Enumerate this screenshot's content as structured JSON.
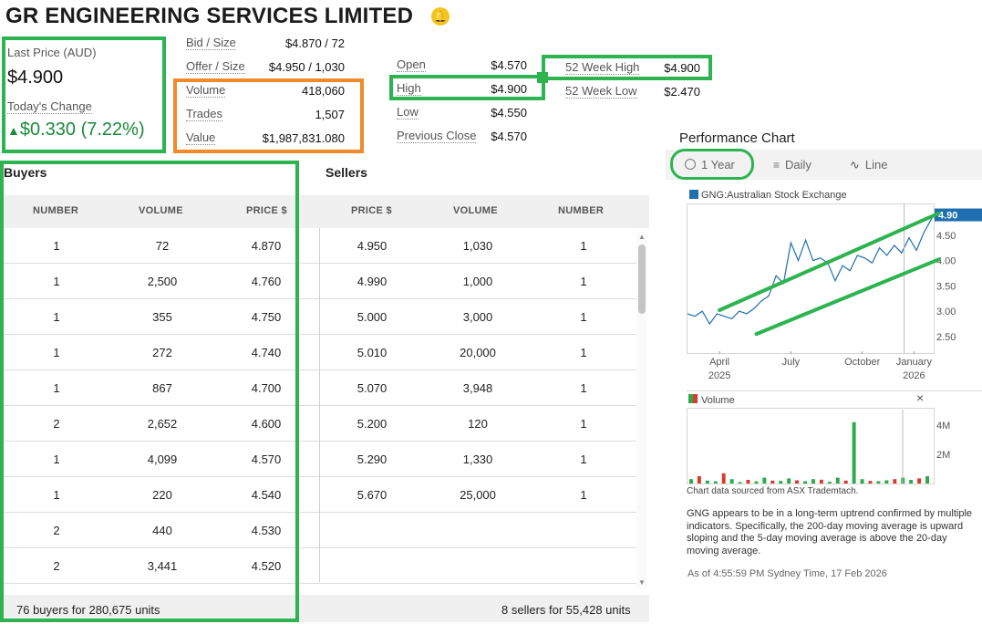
{
  "header": {
    "title": "GR ENGINEERING SERVICES LIMITED",
    "alert_icon": "bell-icon"
  },
  "quote": {
    "last_price_label": "Last Price (AUD)",
    "last_price": "$4.900",
    "change_label": "Today's Change",
    "change_arrow": "▲",
    "change_value": "$0.330",
    "change_pct": "(7.22%)",
    "up_color": "#1a8a3a"
  },
  "stats_col1": [
    {
      "label": "Bid / Size",
      "value": "$4.870 / 72"
    },
    {
      "label": "Offer / Size",
      "value": "$4.950 / 1,030"
    },
    {
      "label": "Volume",
      "value": "418,060"
    },
    {
      "label": "Trades",
      "value": "1,507"
    },
    {
      "label": "Value",
      "value": "$1,987,831.080"
    }
  ],
  "stats_col2": [
    {
      "label": "Open",
      "value": "$4.570"
    },
    {
      "label": "High",
      "value": "$4.900"
    },
    {
      "label": "Low",
      "value": "$4.550"
    },
    {
      "label": "Previous Close",
      "value": "$4.570"
    }
  ],
  "stats_col3": [
    {
      "label": "52 Week High",
      "value": "$4.900"
    },
    {
      "label": "52 Week Low",
      "value": "$2.470"
    }
  ],
  "book": {
    "buyers_title": "Buyers",
    "sellers_title": "Sellers",
    "headers": [
      "NUMBER",
      "VOLUME",
      "PRICE $",
      "PRICE $",
      "VOLUME",
      "NUMBER"
    ],
    "buyers": [
      [
        "1",
        "72",
        "4.870"
      ],
      [
        "1",
        "2,500",
        "4.760"
      ],
      [
        "1",
        "355",
        "4.750"
      ],
      [
        "1",
        "272",
        "4.740"
      ],
      [
        "1",
        "867",
        "4.700"
      ],
      [
        "2",
        "2,652",
        "4.600"
      ],
      [
        "1",
        "4,099",
        "4.570"
      ],
      [
        "1",
        "220",
        "4.540"
      ],
      [
        "2",
        "440",
        "4.530"
      ],
      [
        "2",
        "3,441",
        "4.520"
      ]
    ],
    "sellers": [
      [
        "4.950",
        "1,030",
        "1"
      ],
      [
        "4.990",
        "1,000",
        "1"
      ],
      [
        "5.000",
        "3,000",
        "1"
      ],
      [
        "5.010",
        "20,000",
        "1"
      ],
      [
        "5.070",
        "3,948",
        "1"
      ],
      [
        "5.200",
        "120",
        "1"
      ],
      [
        "5.290",
        "1,330",
        "1"
      ],
      [
        "5.670",
        "25,000",
        "1"
      ]
    ],
    "buyers_summary": "76 buyers for 280,675 units",
    "sellers_summary": "8 sellers for 55,428 units"
  },
  "chart": {
    "title": "Performance Chart",
    "tabs": [
      {
        "label": "1 Year",
        "icon": "clock-icon"
      },
      {
        "label": "Daily",
        "icon": "bars-icon"
      },
      {
        "label": "Line",
        "icon": "line-chart-icon"
      }
    ],
    "legend": "GNG:Australian Stock Exchange",
    "last_label": "4.90",
    "volume_legend": "Volume",
    "close_icon": "×",
    "sourced": "Chart data sourced from ASX Trademtach.",
    "description": "GNG appears to be in a long-term uptrend confirmed by multiple indicators. Specifically, the 200-day moving average is upward sloping and the 5-day moving average is above the 20-day moving average.",
    "as_of": "As of 4:55:59 PM Sydney Time, 17 Feb 2026",
    "accent": "#1f6fb0"
  },
  "chart_data": [
    {
      "type": "line",
      "title": "",
      "series": [
        {
          "name": "GNG:Australian Stock Exchange"
        }
      ],
      "x_ticks": [
        [
          "April",
          "2025"
        ],
        [
          "July"
        ],
        [
          "October"
        ],
        [
          "January",
          "2026"
        ]
      ],
      "y_ticks": [
        "4.50",
        "4.00",
        "3.50",
        "3.00",
        "2.50"
      ],
      "ylim": [
        2.3,
        5.0
      ],
      "x": [
        0,
        0.03,
        0.06,
        0.09,
        0.12,
        0.15,
        0.18,
        0.21,
        0.24,
        0.27,
        0.3,
        0.33,
        0.36,
        0.39,
        0.42,
        0.45,
        0.48,
        0.51,
        0.54,
        0.57,
        0.6,
        0.63,
        0.66,
        0.69,
        0.72,
        0.75,
        0.78,
        0.81,
        0.84,
        0.87,
        0.9,
        0.93,
        0.96,
        1.0
      ],
      "values": [
        2.95,
        2.9,
        3.0,
        2.75,
        2.95,
        2.9,
        2.85,
        3.0,
        2.95,
        3.05,
        3.2,
        3.3,
        3.7,
        3.55,
        4.35,
        4.0,
        4.4,
        4.0,
        4.05,
        3.95,
        3.6,
        3.9,
        3.8,
        4.1,
        4.05,
        3.95,
        4.25,
        4.1,
        4.3,
        4.15,
        4.45,
        4.2,
        4.55,
        4.9
      ],
      "grid": false
    },
    {
      "type": "bar",
      "title": "Volume",
      "y_ticks": [
        "4M",
        "2M"
      ],
      "ylim": [
        0,
        5000000
      ],
      "values": [
        300000,
        500000,
        200000,
        150000,
        700000,
        300000,
        100000,
        250000,
        150000,
        400000,
        200000,
        180000,
        350000,
        220000,
        160000,
        300000,
        260000,
        120000,
        400000,
        200000,
        4200000,
        300000,
        180000,
        160000,
        220000,
        300000,
        400000,
        250000,
        350000,
        500000
      ]
    }
  ]
}
